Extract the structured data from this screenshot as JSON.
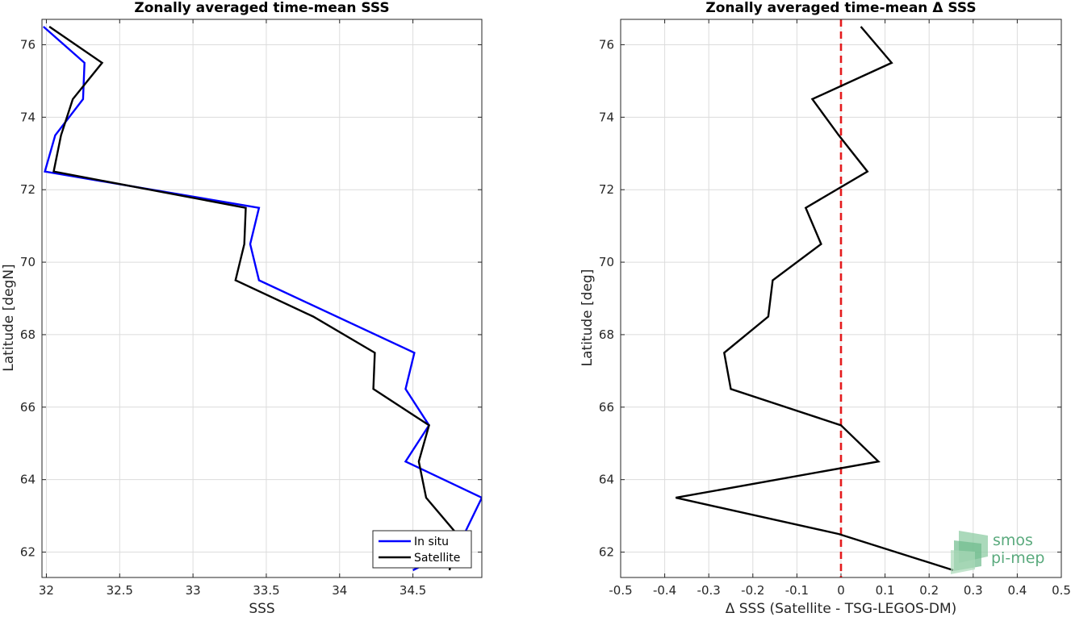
{
  "chart_data": [
    {
      "type": "line",
      "title": "Zonally averaged time-mean SSS",
      "xlabel": "SSS",
      "ylabel": "Latitude [degN]",
      "xlim": [
        31.97,
        34.97
      ],
      "ylim": [
        61.3,
        76.7
      ],
      "xticks": [
        32,
        32.5,
        33,
        33.5,
        34,
        34.5
      ],
      "xtick_labels": [
        "32",
        "32.5",
        "33",
        "33.5",
        "34",
        "34.5"
      ],
      "yticks": [
        62,
        64,
        66,
        68,
        70,
        72,
        74,
        76
      ],
      "ytick_labels": [
        "62",
        "64",
        "66",
        "68",
        "70",
        "72",
        "74",
        "76"
      ],
      "grid": true,
      "legend_position": "bottom-right",
      "series": [
        {
          "name": "In situ",
          "color": "#0000ff",
          "x": [
            31.98,
            32.26,
            32.25,
            32.06,
            31.99,
            33.45,
            33.39,
            33.45,
            34.51,
            34.45,
            34.61,
            34.45,
            34.97,
            34.85,
            34.75,
            34.5
          ],
          "y": [
            76.5,
            75.5,
            74.5,
            73.5,
            72.5,
            71.5,
            70.5,
            69.5,
            67.5,
            66.5,
            65.5,
            64.5,
            63.5,
            62.5,
            62.0,
            61.5
          ]
        },
        {
          "name": "Satellite",
          "color": "#000000",
          "x": [
            32.02,
            32.38,
            32.18,
            32.1,
            32.05,
            33.36,
            33.35,
            33.29,
            33.82,
            34.24,
            34.23,
            34.61,
            34.54,
            34.59,
            34.8,
            34.75
          ],
          "y": [
            76.5,
            75.5,
            74.5,
            73.5,
            72.5,
            71.5,
            70.5,
            69.5,
            68.5,
            67.5,
            66.5,
            65.5,
            64.5,
            63.5,
            62.5,
            61.5
          ]
        }
      ]
    },
    {
      "type": "line",
      "title": "Zonally averaged time-mean Δ SSS",
      "xlabel": "Δ SSS (Satellite - TSG-LEGOS-DM)",
      "ylabel": "Latitude [deg]",
      "xlim": [
        -0.5,
        0.5
      ],
      "ylim": [
        61.3,
        76.7
      ],
      "xticks": [
        -0.5,
        -0.4,
        -0.3,
        -0.2,
        -0.1,
        0,
        0.1,
        0.2,
        0.3,
        0.4,
        0.5
      ],
      "xtick_labels": [
        "-0.5",
        "-0.4",
        "-0.3",
        "-0.2",
        "-0.1",
        "0",
        "0.1",
        "0.2",
        "0.3",
        "0.4",
        "0.5"
      ],
      "yticks": [
        62,
        64,
        66,
        68,
        70,
        72,
        74,
        76
      ],
      "ytick_labels": [
        "62",
        "64",
        "66",
        "68",
        "70",
        "72",
        "74",
        "76"
      ],
      "grid": true,
      "reference_line": {
        "x": 0,
        "color": "#e41a1c",
        "style": "dashed"
      },
      "series": [
        {
          "color": "#000000",
          "x": [
            0.045,
            0.115,
            -0.065,
            -0.005,
            0.06,
            -0.08,
            -0.045,
            -0.155,
            -0.165,
            -0.265,
            -0.25,
            0,
            0.085,
            -0.375,
            -0.005,
            0.255
          ],
          "y": [
            76.5,
            75.5,
            74.5,
            73.5,
            72.5,
            71.5,
            70.5,
            69.5,
            68.5,
            67.5,
            66.5,
            65.5,
            64.5,
            63.5,
            62.5,
            61.5
          ]
        }
      ]
    }
  ],
  "logo": {
    "line1": "smos",
    "line2": "pi-mep",
    "color": "#5aaa7d"
  }
}
